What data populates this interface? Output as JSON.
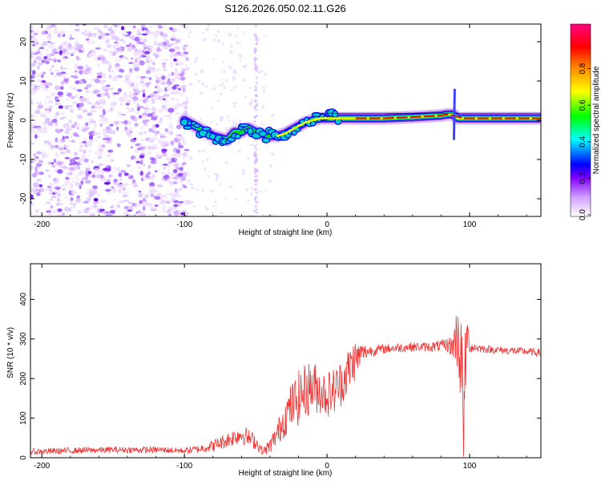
{
  "title": "S126.2026.050.02.11.G26",
  "chart_data": [
    {
      "type": "heatmap",
      "title": "S126.2026.050.02.11.G26",
      "xlabel": "Height of straight line (km)",
      "ylabel": "Frequency (Hz)",
      "xlim": [
        -208,
        150
      ],
      "ylim": [
        -24.5,
        24.5
      ],
      "x_ticks": [
        -200,
        -100,
        0,
        100
      ],
      "y_ticks": [
        -20,
        -10,
        0,
        10,
        20
      ],
      "grid": false,
      "ridge": {
        "name": "Doppler frequency trace",
        "x": [
          -100,
          -95,
          -90,
          -85,
          -80,
          -75,
          -70,
          -65,
          -60,
          -55,
          -50,
          -45,
          -40,
          -35,
          -30,
          -25,
          -20,
          -15,
          -10,
          -5,
          0,
          5,
          10,
          20,
          40,
          60,
          80,
          84,
          88,
          92,
          100,
          120,
          140,
          150
        ],
        "y": [
          0,
          -1,
          -2,
          -3,
          -4,
          -4.5,
          -5,
          -3,
          -3,
          -2,
          -3,
          -3.5,
          -4,
          -4,
          -3.5,
          -2.5,
          -1.5,
          -0.5,
          0,
          0.5,
          0.5,
          0.5,
          0.5,
          0.5,
          0.5,
          0.8,
          1.2,
          1.5,
          1.5,
          0.5,
          0.5,
          0.5,
          0.5,
          0.5
        ]
      },
      "colorbar": {
        "label": "Normalized spectral amplitude",
        "range": [
          0,
          1
        ],
        "ticks": [
          "0.0",
          "0.2",
          "0.4",
          "0.6",
          "0.8"
        ]
      }
    },
    {
      "type": "line",
      "xlabel": "Height of straight line (km)",
      "ylabel": "SNR (10 * v/v)",
      "xlim": [
        -208,
        150
      ],
      "ylim": [
        0,
        490
      ],
      "x_ticks": [
        -200,
        -100,
        0,
        100
      ],
      "y_ticks": [
        0,
        100,
        200,
        300,
        400
      ],
      "grid": false,
      "series": [
        {
          "name": "SNR",
          "color": "#ee3333",
          "x": [
            -208,
            -180,
            -150,
            -120,
            -100,
            -90,
            -80,
            -70,
            -60,
            -50,
            -45,
            -40,
            -35,
            -30,
            -25,
            -20,
            -15,
            -10,
            -5,
            0,
            5,
            10,
            15,
            18,
            20,
            22,
            25,
            30,
            40,
            50,
            60,
            70,
            80,
            85,
            88,
            90,
            92,
            94,
            95,
            96,
            97,
            98,
            100,
            105,
            110,
            120,
            130,
            140,
            150
          ],
          "y": [
            15,
            18,
            20,
            20,
            18,
            22,
            30,
            45,
            60,
            40,
            15,
            30,
            60,
            100,
            130,
            150,
            170,
            180,
            170,
            160,
            170,
            190,
            220,
            240,
            250,
            255,
            265,
            270,
            275,
            278,
            280,
            280,
            282,
            285,
            280,
            300,
            310,
            250,
            150,
            60,
            200,
            320,
            280,
            278,
            275,
            272,
            270,
            268,
            265
          ],
          "fluctuation": [
            8,
            8,
            8,
            8,
            8,
            10,
            15,
            20,
            25,
            20,
            10,
            20,
            30,
            50,
            60,
            70,
            70,
            70,
            60,
            60,
            60,
            60,
            60,
            60,
            50,
            40,
            25,
            15,
            12,
            12,
            12,
            12,
            15,
            20,
            30,
            60,
            100,
            150,
            150,
            100,
            150,
            60,
            15,
            12,
            10,
            10,
            10,
            10,
            10
          ]
        }
      ]
    }
  ]
}
